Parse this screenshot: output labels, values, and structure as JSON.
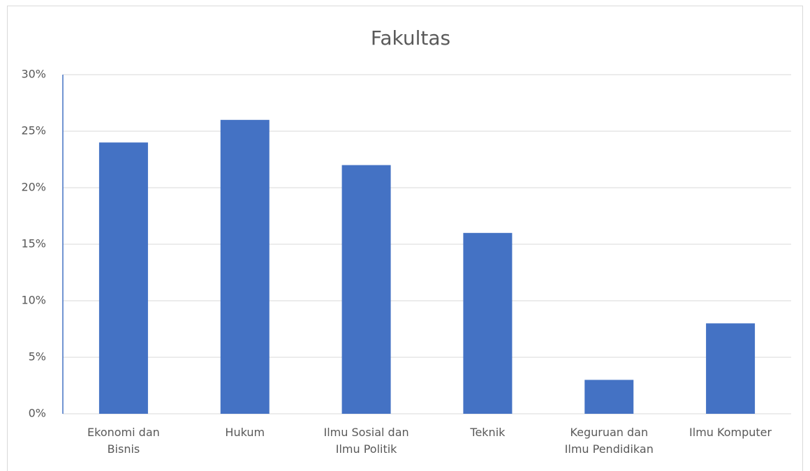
{
  "chart_data": {
    "type": "bar",
    "title": "Fakultas",
    "categories": [
      "Ekonomi dan Bisnis",
      "Hukum",
      "Ilmu Sosial dan Ilmu Politik",
      "Teknik",
      "Keguruan dan Ilmu Pendidikan",
      "Ilmu Komputer"
    ],
    "values": [
      24,
      26,
      22,
      16,
      3,
      8
    ],
    "color": "#4472c4",
    "ylim": [
      0,
      30
    ],
    "yticks": [
      {
        "value": 0,
        "label": "0%"
      },
      {
        "value": 5,
        "label": "5%"
      },
      {
        "value": 10,
        "label": "10%"
      },
      {
        "value": 15,
        "label": "15%"
      },
      {
        "value": 20,
        "label": "20%"
      },
      {
        "value": 25,
        "label": "25%"
      },
      {
        "value": 30,
        "label": "30%"
      }
    ],
    "grid": true
  }
}
